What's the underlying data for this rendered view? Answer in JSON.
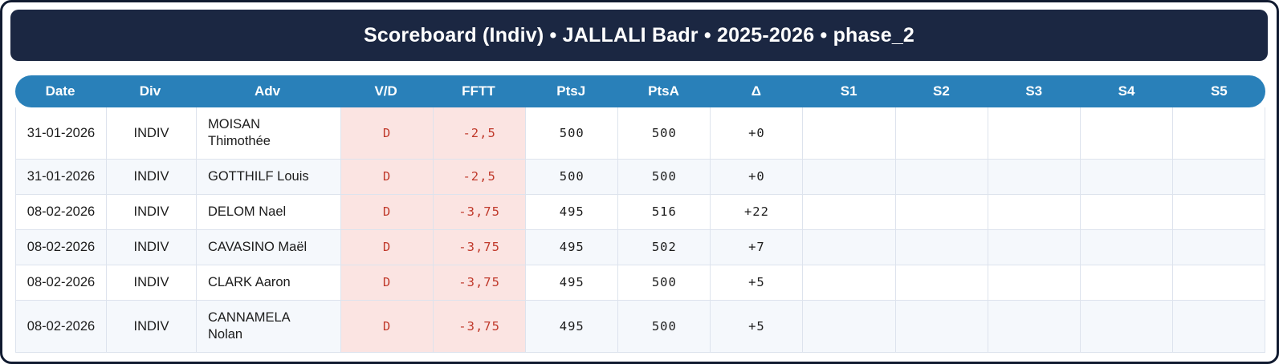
{
  "title": "Scoreboard (Indiv) • JALLALI Badr • 2025-2026 • phase_2",
  "colors": {
    "card_border": "#111b30",
    "title_bar_bg": "#1b2742",
    "title_text": "#ffffff",
    "header_bg": "#2980b9",
    "header_text": "#ffffff",
    "row_bg": "#ffffff",
    "row_alt_bg": "#f5f8fc",
    "defeat_cell_bg": "#fbe4e2",
    "defeat_text": "#c0392b",
    "grid_line": "#dde3ed",
    "body_text": "#1c1c1c"
  },
  "table": {
    "columns": [
      {
        "key": "date",
        "label": "Date"
      },
      {
        "key": "div",
        "label": "Div"
      },
      {
        "key": "adv",
        "label": "Adv"
      },
      {
        "key": "vd",
        "label": "V/D"
      },
      {
        "key": "fftt",
        "label": "FFTT"
      },
      {
        "key": "ptsj",
        "label": "PtsJ"
      },
      {
        "key": "ptsa",
        "label": "PtsA"
      },
      {
        "key": "delta",
        "label": "Δ"
      },
      {
        "key": "s1",
        "label": "S1"
      },
      {
        "key": "s2",
        "label": "S2"
      },
      {
        "key": "s3",
        "label": "S3"
      },
      {
        "key": "s4",
        "label": "S4"
      },
      {
        "key": "s5",
        "label": "S5"
      }
    ],
    "rows": [
      {
        "date": "31-01-2026",
        "div": "INDIV",
        "adv": "MOISAN\nThimothée",
        "vd": "D",
        "fftt": "-2,5",
        "ptsj": "500",
        "ptsa": "500",
        "delta": "+0",
        "s1": "",
        "s2": "",
        "s3": "",
        "s4": "",
        "s5": ""
      },
      {
        "date": "31-01-2026",
        "div": "INDIV",
        "adv": "GOTTHILF Louis",
        "vd": "D",
        "fftt": "-2,5",
        "ptsj": "500",
        "ptsa": "500",
        "delta": "+0",
        "s1": "",
        "s2": "",
        "s3": "",
        "s4": "",
        "s5": ""
      },
      {
        "date": "08-02-2026",
        "div": "INDIV",
        "adv": "DELOM Nael",
        "vd": "D",
        "fftt": "-3,75",
        "ptsj": "495",
        "ptsa": "516",
        "delta": "+22",
        "s1": "",
        "s2": "",
        "s3": "",
        "s4": "",
        "s5": ""
      },
      {
        "date": "08-02-2026",
        "div": "INDIV",
        "adv": "CAVASINO Maël",
        "vd": "D",
        "fftt": "-3,75",
        "ptsj": "495",
        "ptsa": "502",
        "delta": "+7",
        "s1": "",
        "s2": "",
        "s3": "",
        "s4": "",
        "s5": ""
      },
      {
        "date": "08-02-2026",
        "div": "INDIV",
        "adv": "CLARK Aaron",
        "vd": "D",
        "fftt": "-3,75",
        "ptsj": "495",
        "ptsa": "500",
        "delta": "+5",
        "s1": "",
        "s2": "",
        "s3": "",
        "s4": "",
        "s5": ""
      },
      {
        "date": "08-02-2026",
        "div": "INDIV",
        "adv": "CANNAMELA\nNolan",
        "vd": "D",
        "fftt": "-3,75",
        "ptsj": "495",
        "ptsa": "500",
        "delta": "+5",
        "s1": "",
        "s2": "",
        "s3": "",
        "s4": "",
        "s5": ""
      }
    ]
  }
}
